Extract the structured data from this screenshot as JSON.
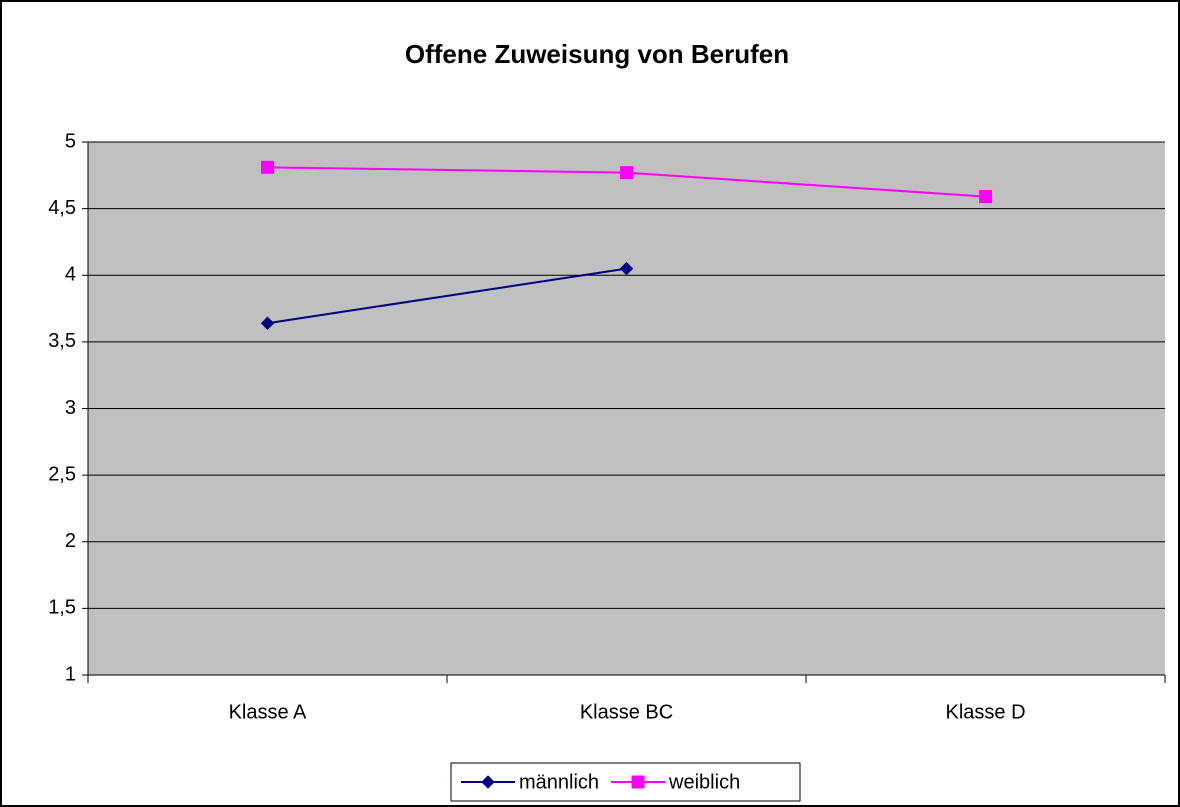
{
  "chart_data": {
    "type": "line",
    "title": "Offene Zuweisung von Berufen",
    "categories": [
      "Klasse A",
      "Klasse BC",
      "Klasse D"
    ],
    "series": [
      {
        "name": "männlich",
        "color": "#000080",
        "marker": "diamond",
        "values": [
          3.64,
          4.05,
          null
        ]
      },
      {
        "name": "weiblich",
        "color": "#ff00ff",
        "marker": "square",
        "values": [
          4.81,
          4.77,
          4.59
        ]
      }
    ],
    "ylim": [
      1,
      5
    ],
    "yticks": [
      1,
      {
        "value": 1.5,
        "label": "1,5"
      },
      2,
      {
        "value": 2.5,
        "label": "2,5"
      },
      3,
      {
        "value": 3.5,
        "label": "3,5"
      },
      4,
      {
        "value": 4.5,
        "label": "4,5"
      },
      5
    ],
    "grid": true,
    "legend": "bottom"
  }
}
